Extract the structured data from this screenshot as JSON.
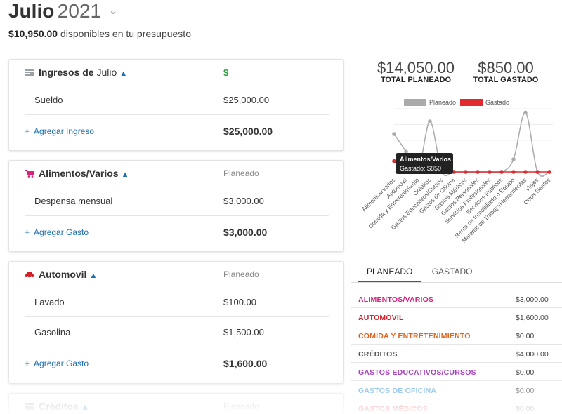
{
  "header": {
    "month": "Julio",
    "year": "2021",
    "available_amount": "$10,950.00",
    "available_text": " disponibles en tu presupuesto"
  },
  "income": {
    "title": "Ingresos de",
    "title_sub": " Julio",
    "column_symbol": "$",
    "items": [
      {
        "label": "Sueldo",
        "value": "$25,000.00"
      }
    ],
    "add_label": "Agregar Ingreso",
    "total": "$25,000.00"
  },
  "groups": [
    {
      "title": "Alimentos/Varios",
      "column_header": "Planeado",
      "color": "#d6247f",
      "items": [
        {
          "label": "Despensa mensual",
          "value": "$3,000.00"
        }
      ],
      "add_label": "Agregar Gasto",
      "total": "$3,000.00"
    },
    {
      "title": "Automovil",
      "column_header": "Planeado",
      "color": "#d0202a",
      "items": [
        {
          "label": "Lavado",
          "value": "$100.00"
        },
        {
          "label": "Gasolina",
          "value": "$1,500.00"
        }
      ],
      "add_label": "Agregar Gasto",
      "total": "$1,600.00"
    },
    {
      "title": "Créditos",
      "column_header": "Planeado",
      "color": "#999999"
    }
  ],
  "totals": {
    "planned_value": "$14,050.00",
    "planned_label": "TOTAL PLANEADO",
    "spent_value": "$850.00",
    "spent_label": "TOTAL GASTADO"
  },
  "chart_data": {
    "type": "line",
    "legend_position": "top",
    "categories": [
      "Alimentos/Varios",
      "Automovil",
      "Comida y Entretenimiento",
      "Créditos",
      "Gastos Educativos/Cursos",
      "Gastos de Oficina",
      "Gastos Médicos",
      "Gastos Personales",
      "Servicios Profesionales",
      "Servicios Públicos",
      "Renta de Inmobiliario o Equipo",
      "Material de Trabajo/Herramientas",
      "Viajes",
      "Otros Gastos"
    ],
    "series": [
      {
        "name": "Planeado",
        "color": "#aaaaaa",
        "values": [
          3000,
          1600,
          0,
          4000,
          0,
          0,
          0,
          0,
          0,
          0,
          1000,
          4700,
          0,
          0
        ]
      },
      {
        "name": "Gastado",
        "color": "#e02a30",
        "values": [
          850,
          0,
          0,
          0,
          0,
          0,
          0,
          0,
          0,
          0,
          0,
          0,
          0,
          0
        ]
      }
    ],
    "tooltip": {
      "title": "Alimentos/Varios",
      "text": "Gastado: $850"
    },
    "grid": true
  },
  "tabs": [
    {
      "label": "PLANEADO"
    },
    {
      "label": "GASTADO"
    }
  ],
  "categories": [
    {
      "name": "ALIMENTOS/VARIOS",
      "value": "$3,000.00",
      "color": "#d6247f"
    },
    {
      "name": "AUTOMOVIL",
      "value": "$1,600.00",
      "color": "#d0202a"
    },
    {
      "name": "COMIDA Y ENTRETENIMIENTO",
      "value": "$0.00",
      "color": "#e0651e"
    },
    {
      "name": "CRÉDITOS",
      "value": "$4,000.00",
      "color": "#555555"
    },
    {
      "name": "GASTOS EDUCATIVOS/CURSOS",
      "value": "$0.00",
      "color": "#a63cc0"
    },
    {
      "name": "GASTOS DE OFICINA",
      "value": "$0.00",
      "color": "#5aa7e0"
    },
    {
      "name": "GASTOS MÉDICOS",
      "value": "$0.00",
      "color": "#e0303a"
    }
  ]
}
